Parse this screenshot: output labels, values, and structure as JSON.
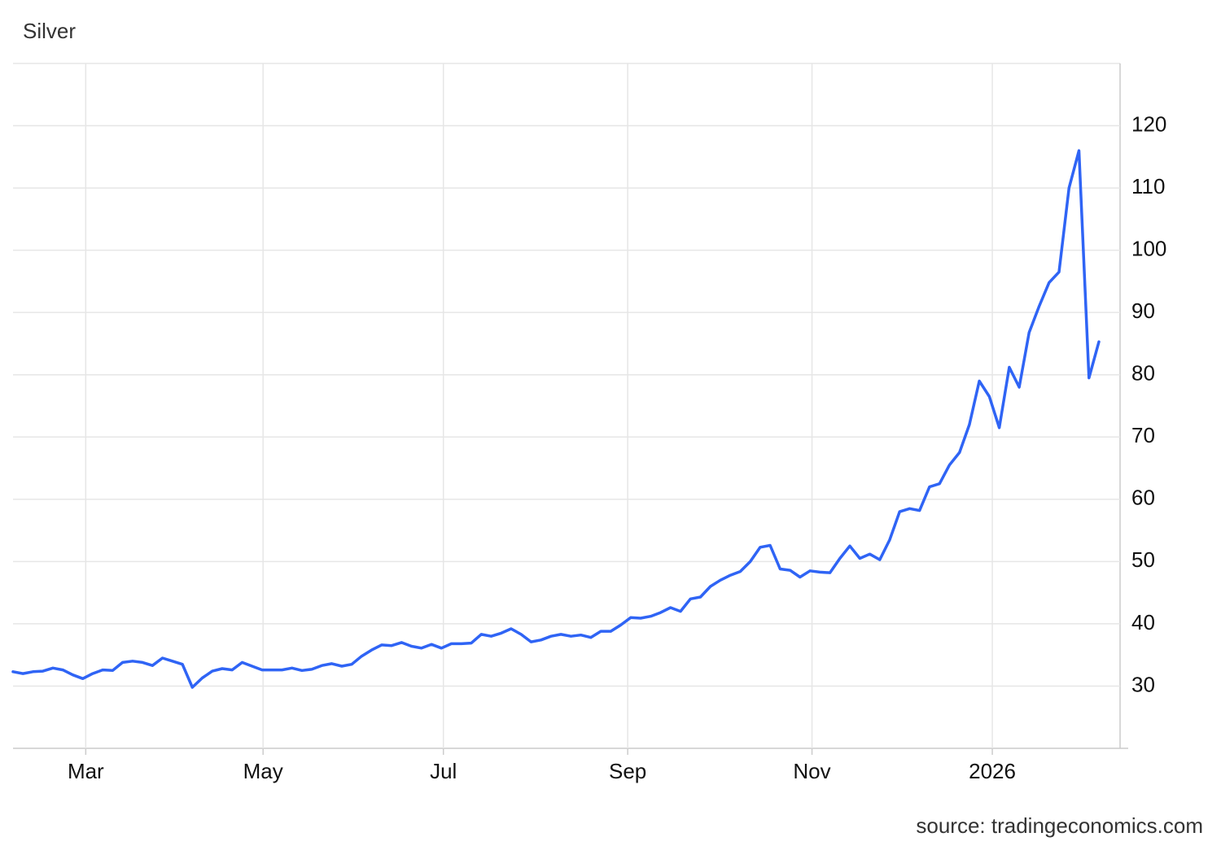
{
  "chart_data": {
    "type": "line",
    "title": "Silver",
    "source": "source: tradingeconomics.com",
    "series": [
      {
        "name": "Silver",
        "color": "#2f64f5",
        "values": [
          32.3,
          32.0,
          32.3,
          32.4,
          32.9,
          32.6,
          31.8,
          31.2,
          32.0,
          32.6,
          32.5,
          33.8,
          34.0,
          33.8,
          33.3,
          34.5,
          34.0,
          33.5,
          29.8,
          31.3,
          32.4,
          32.8,
          32.6,
          33.8,
          33.2,
          32.6,
          32.6,
          32.6,
          32.9,
          32.5,
          32.7,
          33.3,
          33.6,
          33.2,
          33.5,
          34.8,
          35.8,
          36.6,
          36.5,
          37.0,
          36.4,
          36.1,
          36.7,
          36.1,
          36.8,
          36.8,
          36.9,
          38.3,
          38.0,
          38.5,
          39.2,
          38.3,
          37.1,
          37.4,
          38.0,
          38.3,
          38.0,
          38.2,
          37.8,
          38.8,
          38.8,
          39.8,
          41.0,
          40.9,
          41.2,
          41.8,
          42.6,
          42.0,
          44.0,
          44.3,
          46.0,
          47.0,
          47.8,
          48.4,
          50.0,
          52.3,
          52.6,
          48.8,
          48.6,
          47.5,
          48.5,
          48.3,
          48.2,
          50.5,
          52.5,
          50.5,
          51.2,
          50.3,
          53.5,
          58.0,
          58.5,
          58.2,
          62.0,
          62.5,
          65.5,
          67.5,
          72.0,
          79.0,
          76.5,
          71.5,
          81.2,
          78.0,
          86.8,
          91.0,
          94.8,
          96.5,
          110.0,
          116.0,
          79.5,
          85.3
        ]
      }
    ],
    "xlim": [
      0,
      109
    ],
    "xticks": [
      {
        "value": 7.3,
        "label": "Mar"
      },
      {
        "value": 25.1,
        "label": "May"
      },
      {
        "value": 43.2,
        "label": "Jul"
      },
      {
        "value": 61.7,
        "label": "Sep"
      },
      {
        "value": 80.2,
        "label": "Nov"
      },
      {
        "value": 98.3,
        "label": "2026"
      }
    ],
    "ylim": [
      20,
      130
    ],
    "yticks": [
      30,
      40,
      50,
      60,
      70,
      80,
      90,
      100,
      110,
      120
    ],
    "grid": true
  }
}
